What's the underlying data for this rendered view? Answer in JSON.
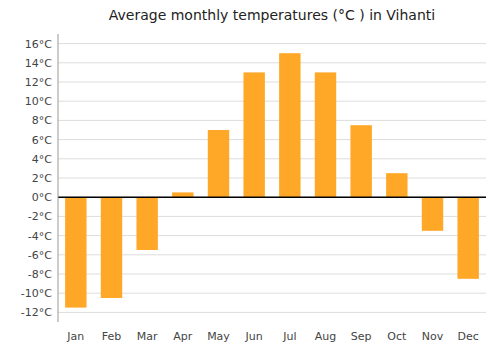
{
  "chart_data": {
    "type": "bar",
    "title": "Average monthly temperatures (°C ) in Vihanti",
    "categories": [
      "Jan",
      "Feb",
      "Mar",
      "Apr",
      "May",
      "Jun",
      "Jul",
      "Aug",
      "Sep",
      "Oct",
      "Nov",
      "Dec"
    ],
    "values": [
      -11.5,
      -10.5,
      -5.5,
      0.5,
      7.0,
      13.0,
      15.0,
      13.0,
      7.5,
      2.5,
      -3.5,
      -8.5
    ],
    "color": "#FFA726",
    "ylim": [
      -13,
      17
    ],
    "yticks": [
      {
        "value": -12,
        "label": "-12°C"
      },
      {
        "value": -10,
        "label": "-10°C"
      },
      {
        "value": -8,
        "label": "-8°C"
      },
      {
        "value": -6,
        "label": "-6°C"
      },
      {
        "value": -4,
        "label": "-4°C"
      },
      {
        "value": -2,
        "label": "-2°C"
      },
      {
        "value": 0,
        "label": "0°C"
      },
      {
        "value": 2,
        "label": "2°C"
      },
      {
        "value": 4,
        "label": "4°C"
      },
      {
        "value": 6,
        "label": "6°C"
      },
      {
        "value": 8,
        "label": "8°C"
      },
      {
        "value": 10,
        "label": "10°C"
      },
      {
        "value": 12,
        "label": "12°C"
      },
      {
        "value": 14,
        "label": "14°C"
      },
      {
        "value": 16,
        "label": "16°C"
      }
    ],
    "grid": true
  }
}
